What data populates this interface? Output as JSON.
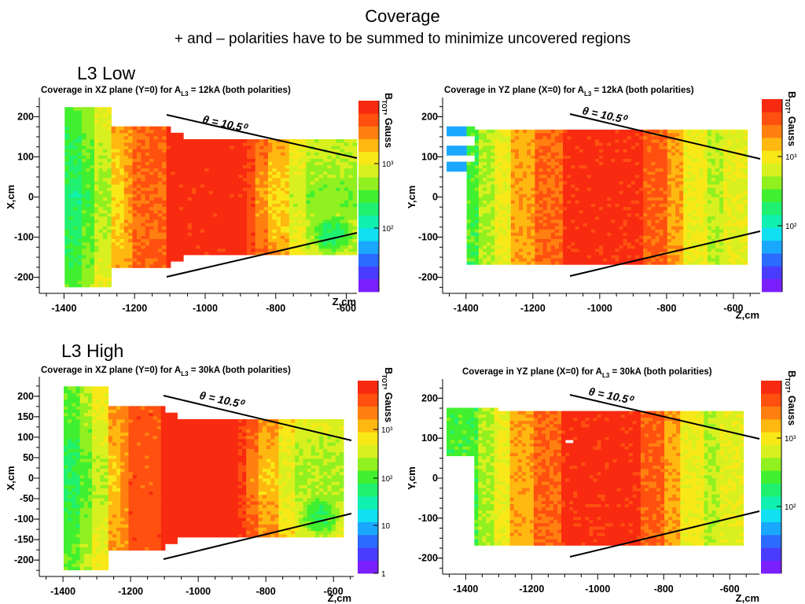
{
  "header": {
    "title": "Coverage",
    "subtitle": "+ and – polarities have to be summed to minimize uncovered regions"
  },
  "sections": {
    "low": "L3 Low",
    "high": "L3 High"
  },
  "colors": {
    "palette": [
      "#7a1fff",
      "#4a3cff",
      "#2b6bff",
      "#1aa8ff",
      "#10e0f0",
      "#10f0b0",
      "#20f070",
      "#40f030",
      "#90f020",
      "#d8f020",
      "#f8e818",
      "#ffb810",
      "#ff8010",
      "#ff5010",
      "#f82a10"
    ]
  },
  "chart_data": [
    {
      "type": "heatmap",
      "title": "Coverage in XZ plane (Y=0) for A",
      "title_sub": "L3",
      "title_tail": " = 12kA (both polarities)",
      "xlabel": "Z,cm",
      "ylabel": "X,cm",
      "zlabel": "B",
      "zlabel_sub": "TOT",
      "zlabel_tail": ", Gauss",
      "xlim": [
        -1470,
        -570
      ],
      "ylim": [
        -240,
        240
      ],
      "xticks": [
        "-1400",
        "-1200",
        "-1000",
        "-800",
        "-600"
      ],
      "xtick_values": [
        -1400,
        -1200,
        -1000,
        -800,
        -600
      ],
      "yticks": [
        "200",
        "100",
        "0",
        "-100",
        "-200"
      ],
      "ytick_values": [
        200,
        100,
        0,
        -100,
        -200
      ],
      "zticks": [
        "10³",
        "10²"
      ],
      "annotation": "θ = 10.5⁰"
    },
    {
      "type": "heatmap",
      "title": "Coverage in YZ plane (X=0) for A",
      "title_sub": "L3",
      "title_tail": " = 12kA (both polarities)",
      "xlabel": "Z,cm",
      "ylabel": "Y,cm",
      "zlabel": "B",
      "zlabel_sub": "TOT",
      "zlabel_tail": ", Gauss",
      "xlim": [
        -1470,
        -520
      ],
      "ylim": [
        -240,
        240
      ],
      "xticks": [
        "-1400",
        "-1200",
        "-1000",
        "-800",
        "-600"
      ],
      "xtick_values": [
        -1400,
        -1200,
        -1000,
        -800,
        -600
      ],
      "yticks": [
        "200",
        "100",
        "0",
        "-100",
        "-200"
      ],
      "ytick_values": [
        200,
        100,
        0,
        -100,
        -200
      ],
      "zticks": [
        "10³",
        "10²"
      ],
      "annotation": "θ = 10.5⁰"
    },
    {
      "type": "heatmap",
      "title": "Coverage in XZ plane (Y=0) for A",
      "title_sub": "L3",
      "title_tail": " = 30kA (both polarities)",
      "xlabel": "Z,cm",
      "ylabel": "X,cm",
      "zlabel": "B",
      "zlabel_sub": "TOT",
      "zlabel_tail": ", Gauss",
      "xlim": [
        -1470,
        -540
      ],
      "ylim": [
        -240,
        240
      ],
      "xticks": [
        "-1400",
        "-1200",
        "-1000",
        "-800",
        "-600"
      ],
      "xtick_values": [
        -1400,
        -1200,
        -1000,
        -800,
        -600
      ],
      "yticks": [
        "200",
        "150",
        "100",
        "50",
        "0",
        "-50",
        "-100",
        "-150",
        "-200"
      ],
      "ytick_values": [
        200,
        150,
        100,
        50,
        0,
        -50,
        -100,
        -150,
        -200
      ],
      "zticks": [
        "10³",
        "10²",
        "10",
        "1"
      ],
      "annotation": "θ = 10.5⁰"
    },
    {
      "type": "heatmap",
      "title": "Coverage in YZ plane (X=0) for A",
      "title_sub": "L3",
      "title_tail": " = 30kA (both polarities)",
      "xlabel": "Z,cm",
      "ylabel": "Y,cm",
      "zlabel": "B",
      "zlabel_sub": "TOT",
      "zlabel_tail": ", Gauss",
      "xlim": [
        -1470,
        -510
      ],
      "ylim": [
        -240,
        240
      ],
      "xticks": [
        "-1400",
        "-1200",
        "-1000",
        "-800",
        "-600"
      ],
      "xtick_values": [
        -1400,
        -1200,
        -1000,
        -800,
        -600
      ],
      "yticks": [
        "200",
        "100",
        "0",
        "-100",
        "-200"
      ],
      "ytick_values": [
        200,
        100,
        0,
        -100,
        -200
      ],
      "zticks": [
        "10³",
        "10²"
      ],
      "annotation": "θ = 10.5⁰"
    }
  ]
}
